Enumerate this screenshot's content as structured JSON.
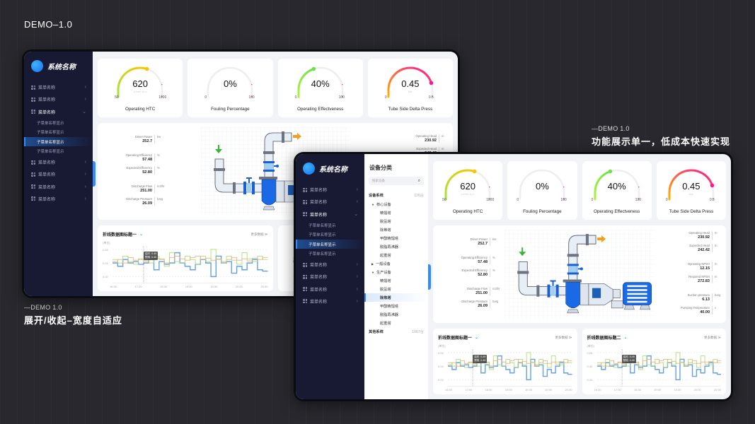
{
  "captions": {
    "top": "DEMO–1.0",
    "left_small": "—DEMO 1.0",
    "left_big": "展开/收起–宽度自适应",
    "right_small": "—DEMO 1.0",
    "right_big": "功能展示单一，低成本快速实现"
  },
  "app": {
    "title": "系统名称"
  },
  "sidebar": {
    "items": [
      {
        "label": "菜单名称"
      },
      {
        "label": "菜单名称"
      },
      {
        "label": "菜单名称",
        "open": true,
        "children": [
          "子菜单名称显示",
          "子菜单名称显示",
          "子菜单名称显示",
          "子菜单名称显示"
        ],
        "selected_child": 2
      },
      {
        "label": "菜单名称"
      },
      {
        "label": "菜单名称"
      },
      {
        "label": "菜单名称"
      },
      {
        "label": "菜单名称"
      }
    ]
  },
  "category": {
    "title": "设备分类",
    "search_placeholder": "搜索设备",
    "systems": [
      {
        "name": "设备系统",
        "count": "126台",
        "groups": [
          {
            "name": "核心设备",
            "expanded": true,
            "leaves": [
              "精馏塔",
              "脱氢塔",
              "除焦塔",
              "甲醇精馏塔",
              "脱脂再沸器",
              "起重塔"
            ]
          },
          {
            "name": "一般设备",
            "expanded": false,
            "leaves": []
          },
          {
            "name": "生产设备",
            "expanded": true,
            "leaves": [
              "精馏塔",
              "脱氢塔",
              "除焦塔",
              "甲醇精馏塔",
              "脱脂再沸器",
              "起重塔"
            ],
            "selected": 2
          }
        ]
      },
      {
        "name": "其他系统",
        "count": "1067台",
        "groups": []
      }
    ]
  },
  "gauges": [
    {
      "value": "620",
      "unit": "kJ/m2-hr-c",
      "min": "50",
      "max": "1000",
      "name": "Operating HTC",
      "fraction": 0.6,
      "colors": [
        "#a6e43c",
        "#f7c600"
      ]
    },
    {
      "value": "0%",
      "unit": "",
      "min": "0",
      "max": "100",
      "name": "Fouling Percentage",
      "fraction": 0,
      "colors": [
        "#a6e43c",
        "#a6e43c"
      ]
    },
    {
      "value": "40%",
      "unit": "",
      "min": "0",
      "max": "100",
      "name": "Operating Effectveness",
      "fraction": 0.4,
      "colors": [
        "#a6f23c",
        "#6ee04a"
      ]
    },
    {
      "value": "0.45",
      "unit": "bar",
      "min": "0",
      "max": "0.5",
      "name": "Tube Side Delta Press",
      "fraction": 0.9,
      "colors": [
        "#ffb000",
        "#ff1493"
      ]
    }
  ],
  "readings": {
    "left": [
      {
        "label": "Driver Power",
        "value": "252.7",
        "unit": "kw"
      },
      {
        "label": "Operating Efficiency",
        "value": "57.48",
        "unit": "%",
        "gap": true
      },
      {
        "label": "Expected Efficiency",
        "value": "52.80",
        "unit": "%"
      },
      {
        "label": "Discharge Flow",
        "value": "251.00",
        "unit": "m3/hr",
        "gap": true
      },
      {
        "label": "Discharge Pressure",
        "value": "26.09",
        "unit": "barg"
      }
    ],
    "right": [
      {
        "label": "Opreating Head",
        "value": "230.92",
        "unit": "m"
      },
      {
        "label": "Expected Head",
        "value": "242.42",
        "unit": "m"
      },
      {
        "label": "Opreating NPSH",
        "value": "12.15",
        "unit": "m",
        "gap": true
      },
      {
        "label": "Required NPSH",
        "value": "272.83",
        "unit": "m"
      },
      {
        "label": "Suction pressure",
        "value": "6.13",
        "unit": "barg",
        "gap": true
      },
      {
        "label": "Pumping Temperature",
        "value": "40.00",
        "unit": "c"
      }
    ]
  },
  "charts_header": [
    {
      "title": "折线数据图标题一",
      "more": "更多数据 ≫"
    },
    {
      "title": "折线数据图标题二",
      "more": "更多数据 ≫"
    }
  ],
  "chart_data": {
    "type": "line",
    "step": true,
    "ylabel": "(单位)",
    "yticks": [
      "0.06",
      "0.04",
      "0.02"
    ],
    "ylim": [
      0.01,
      0.065
    ],
    "xticks": [
      "16:30",
      "17:00",
      "18:30",
      "19:00",
      "19:30",
      "20:00",
      "20:30"
    ],
    "tooltip": {
      "rows": [
        {
          "k": "实时",
          "v": "0.49"
        },
        {
          "k": "预测",
          "v": "0.40"
        }
      ]
    },
    "series": [
      {
        "name": "blue",
        "color": "#4a90e2",
        "values": [
          0.04,
          0.035,
          0.045,
          0.04,
          0.042,
          0.038,
          0.04,
          0.045,
          0.03,
          0.042,
          0.038,
          0.04,
          0.055,
          0.04,
          0.035,
          0.03,
          0.038,
          0.045,
          0.04,
          0.02,
          0.05,
          0.04,
          0.042,
          0.025,
          0.035,
          0.03,
          0.04,
          0.045,
          0.03,
          0.028
        ]
      },
      {
        "name": "orange",
        "color": "#f5a07a",
        "values": [
          0.042,
          0.045,
          0.04,
          0.048,
          0.044,
          0.046,
          0.042,
          0.05,
          0.047,
          0.045,
          0.04,
          0.048,
          0.05,
          0.046,
          0.044,
          0.048,
          0.05,
          0.045,
          0.047,
          0.044,
          0.046,
          0.042,
          0.045,
          0.048,
          0.044,
          0.046,
          0.043,
          0.047,
          0.045,
          0.048
        ]
      },
      {
        "name": "green",
        "color": "#a5d86a",
        "values": [
          0.045,
          0.04,
          0.05,
          0.042,
          0.038,
          0.045,
          0.044,
          0.04,
          0.05,
          0.046,
          0.035,
          0.055,
          0.042,
          0.04,
          0.05,
          0.045,
          0.038,
          0.05,
          0.042,
          0.06,
          0.045,
          0.04,
          0.05,
          0.044,
          0.038,
          0.055,
          0.046,
          0.042,
          0.05,
          0.045
        ]
      }
    ]
  }
}
